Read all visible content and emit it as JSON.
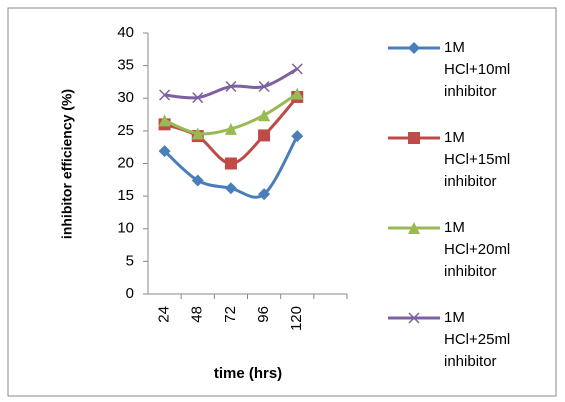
{
  "chart_data": {
    "type": "line",
    "y_label": "inhibitor efficiency (%)",
    "x_label": "time (hrs)",
    "categories": [
      "24",
      "48",
      "72",
      "96",
      "120",
      null
    ],
    "ylim": [
      0,
      40
    ],
    "yticks": [
      0,
      5,
      10,
      15,
      20,
      25,
      30,
      35,
      40
    ],
    "grid": false,
    "legend": "right",
    "series": [
      {
        "name": "1M HCl+10ml inhibitor",
        "color": "#4a7ebb",
        "marker": "diamond",
        "values": [
          21.9,
          17.4,
          16.2,
          15.3,
          24.2,
          null
        ]
      },
      {
        "name": "1M HCl+15ml inhibitor",
        "color": "#be4b48",
        "marker": "square",
        "values": [
          26,
          24.2,
          20,
          24.3,
          30.2,
          null
        ]
      },
      {
        "name": "1M HCl+20ml inhibitor",
        "color": "#98b954",
        "marker": "triangle",
        "values": [
          26.6,
          24.6,
          25.3,
          27.4,
          30.7,
          null
        ]
      },
      {
        "name": "1M HCl+25ml inhibitor",
        "color": "#7d60a0",
        "marker": "x",
        "values": [
          30.5,
          30.1,
          31.8,
          31.8,
          34.5,
          null
        ]
      }
    ]
  }
}
